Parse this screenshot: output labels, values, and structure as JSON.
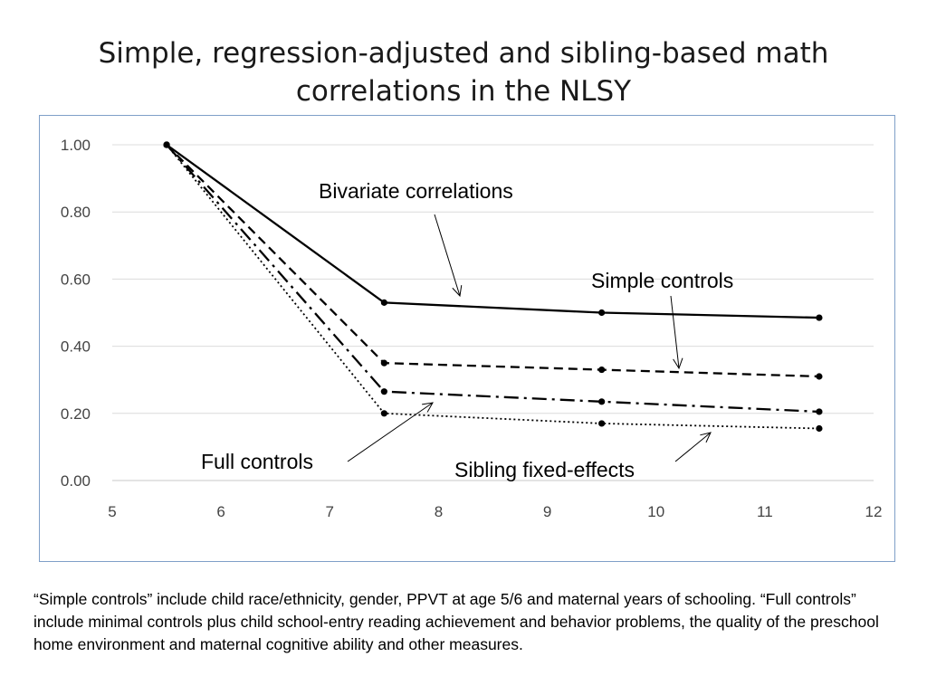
{
  "title_lines": [
    "Simple, regression-adjusted and sibling-based math",
    "correlations in the NLSY"
  ],
  "footnote": "“Simple controls” include child race/ethnicity, gender, PPVT at age 5/6  and maternal years of schooling. “Full controls” include minimal controls plus child school-entry reading achievement and behavior problems, the quality of the preschool home environment and maternal cognitive ability and other measures.",
  "chart_data": {
    "type": "line",
    "title": "",
    "xlabel": "",
    "ylabel": "",
    "xlim": [
      5,
      12
    ],
    "ylim": [
      0,
      1
    ],
    "xticks": [
      5,
      6,
      7,
      8,
      9,
      10,
      11,
      12
    ],
    "yticks": [
      "0.00",
      "0.20",
      "0.40",
      "0.60",
      "0.80",
      "1.00"
    ],
    "grid": true,
    "series": [
      {
        "name": "Bivariate correlations",
        "style": "solid",
        "x": [
          5.5,
          7.5,
          9.5,
          11.5
        ],
        "y": [
          1.0,
          0.53,
          0.5,
          0.485
        ]
      },
      {
        "name": "Simple controls",
        "style": "dashed",
        "x": [
          5.5,
          7.5,
          9.5,
          11.5
        ],
        "y": [
          1.0,
          0.35,
          0.33,
          0.31
        ]
      },
      {
        "name": "Full controls",
        "style": "dashdot",
        "x": [
          5.5,
          7.5,
          9.5,
          11.5
        ],
        "y": [
          1.0,
          0.265,
          0.235,
          0.205
        ]
      },
      {
        "name": "Sibling fixed-effects",
        "style": "dotted",
        "x": [
          5.5,
          7.5,
          9.5,
          11.5
        ],
        "y": [
          1.0,
          0.2,
          0.17,
          0.155
        ]
      }
    ]
  }
}
